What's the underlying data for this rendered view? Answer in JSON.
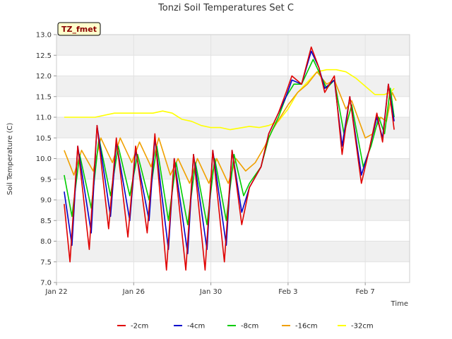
{
  "chart_data": {
    "type": "line",
    "title": "Tonzi Soil Temperatures Set C",
    "xlabel": "Time",
    "ylabel": "Soil Temperature (C)",
    "badge": "TZ_fmet",
    "ylim": [
      7.0,
      13.0
    ],
    "xlim": [
      0,
      18.3
    ],
    "y_ticks": [
      "7.0",
      "7.5",
      "8.0",
      "8.5",
      "9.0",
      "9.5",
      "10.0",
      "10.5",
      "11.0",
      "11.5",
      "12.0",
      "12.5",
      "13.0"
    ],
    "x_ticks": [
      {
        "label": "Jan 22",
        "value": 0
      },
      {
        "label": "Jan 26",
        "value": 4
      },
      {
        "label": "Jan 30",
        "value": 8
      },
      {
        "label": "Feb 3",
        "value": 12
      },
      {
        "label": "Feb 7",
        "value": 16
      }
    ],
    "background_bands": "alternating",
    "grid": true,
    "legend_position": "bottom",
    "series": [
      {
        "name": "-2cm",
        "color": "#e00000",
        "points": [
          [
            0.4,
            8.9
          ],
          [
            0.7,
            7.5
          ],
          [
            1.1,
            10.3
          ],
          [
            1.7,
            7.8
          ],
          [
            2.1,
            10.8
          ],
          [
            2.7,
            8.3
          ],
          [
            3.1,
            10.5
          ],
          [
            3.7,
            8.1
          ],
          [
            4.1,
            10.3
          ],
          [
            4.7,
            8.2
          ],
          [
            5.1,
            10.6
          ],
          [
            5.7,
            7.3
          ],
          [
            6.1,
            10.0
          ],
          [
            6.7,
            7.3
          ],
          [
            7.1,
            10.1
          ],
          [
            7.7,
            7.3
          ],
          [
            8.1,
            10.2
          ],
          [
            8.7,
            7.5
          ],
          [
            9.1,
            10.2
          ],
          [
            9.6,
            8.4
          ],
          [
            10.0,
            9.3
          ],
          [
            10.6,
            9.8
          ],
          [
            11.0,
            10.6
          ],
          [
            11.5,
            11.1
          ],
          [
            11.9,
            11.6
          ],
          [
            12.2,
            12.0
          ],
          [
            12.7,
            11.8
          ],
          [
            13.2,
            12.7
          ],
          [
            13.6,
            12.2
          ],
          [
            13.9,
            11.6
          ],
          [
            14.4,
            12.0
          ],
          [
            14.8,
            10.1
          ],
          [
            15.2,
            11.5
          ],
          [
            15.8,
            9.4
          ],
          [
            16.2,
            10.2
          ],
          [
            16.6,
            11.1
          ],
          [
            16.9,
            10.4
          ],
          [
            17.2,
            11.8
          ],
          [
            17.5,
            10.7
          ]
        ]
      },
      {
        "name": "-4cm",
        "color": "#0000cc",
        "points": [
          [
            0.4,
            9.2
          ],
          [
            0.8,
            7.9
          ],
          [
            1.1,
            10.3
          ],
          [
            1.8,
            8.2
          ],
          [
            2.1,
            10.8
          ],
          [
            2.8,
            8.6
          ],
          [
            3.1,
            10.4
          ],
          [
            3.8,
            8.5
          ],
          [
            4.1,
            10.2
          ],
          [
            4.8,
            8.5
          ],
          [
            5.1,
            10.5
          ],
          [
            5.8,
            7.8
          ],
          [
            6.1,
            10.0
          ],
          [
            6.8,
            7.7
          ],
          [
            7.1,
            10.1
          ],
          [
            7.8,
            7.8
          ],
          [
            8.1,
            10.2
          ],
          [
            8.8,
            7.9
          ],
          [
            9.1,
            10.2
          ],
          [
            9.6,
            8.7
          ],
          [
            10.0,
            9.3
          ],
          [
            10.6,
            9.8
          ],
          [
            11.0,
            10.6
          ],
          [
            11.5,
            11.1
          ],
          [
            11.9,
            11.5
          ],
          [
            12.2,
            11.9
          ],
          [
            12.7,
            11.8
          ],
          [
            13.2,
            12.6
          ],
          [
            13.6,
            12.2
          ],
          [
            13.9,
            11.7
          ],
          [
            14.4,
            11.9
          ],
          [
            14.8,
            10.3
          ],
          [
            15.2,
            11.5
          ],
          [
            15.8,
            9.6
          ],
          [
            16.2,
            10.2
          ],
          [
            16.6,
            11.0
          ],
          [
            16.9,
            10.5
          ],
          [
            17.2,
            11.8
          ],
          [
            17.5,
            10.9
          ]
        ]
      },
      {
        "name": "-8cm",
        "color": "#00cc00",
        "points": [
          [
            0.4,
            9.6
          ],
          [
            0.8,
            8.6
          ],
          [
            1.2,
            10.1
          ],
          [
            1.8,
            8.8
          ],
          [
            2.2,
            10.5
          ],
          [
            2.8,
            9.1
          ],
          [
            3.2,
            10.3
          ],
          [
            3.8,
            9.1
          ],
          [
            4.2,
            10.1
          ],
          [
            4.8,
            9.0
          ],
          [
            5.2,
            10.3
          ],
          [
            5.8,
            8.5
          ],
          [
            6.2,
            9.9
          ],
          [
            6.8,
            8.4
          ],
          [
            7.2,
            9.9
          ],
          [
            7.8,
            8.4
          ],
          [
            8.2,
            10.0
          ],
          [
            8.8,
            8.5
          ],
          [
            9.2,
            10.1
          ],
          [
            9.7,
            9.1
          ],
          [
            10.0,
            9.4
          ],
          [
            10.6,
            9.8
          ],
          [
            11.0,
            10.5
          ],
          [
            11.5,
            11.0
          ],
          [
            11.9,
            11.5
          ],
          [
            12.3,
            11.8
          ],
          [
            12.7,
            11.8
          ],
          [
            13.3,
            12.4
          ],
          [
            13.7,
            12.0
          ],
          [
            14.0,
            11.7
          ],
          [
            14.4,
            11.9
          ],
          [
            14.9,
            10.6
          ],
          [
            15.3,
            11.3
          ],
          [
            15.9,
            9.8
          ],
          [
            16.3,
            10.3
          ],
          [
            16.7,
            11.0
          ],
          [
            17.0,
            10.6
          ],
          [
            17.3,
            11.7
          ],
          [
            17.5,
            11.0
          ]
        ]
      },
      {
        "name": "-16cm",
        "color": "#f0a000",
        "points": [
          [
            0.4,
            10.2
          ],
          [
            0.9,
            9.6
          ],
          [
            1.3,
            10.2
          ],
          [
            1.9,
            9.7
          ],
          [
            2.3,
            10.5
          ],
          [
            2.9,
            9.9
          ],
          [
            3.3,
            10.5
          ],
          [
            3.9,
            9.9
          ],
          [
            4.3,
            10.4
          ],
          [
            4.9,
            9.8
          ],
          [
            5.3,
            10.5
          ],
          [
            5.9,
            9.6
          ],
          [
            6.3,
            10.0
          ],
          [
            6.9,
            9.4
          ],
          [
            7.3,
            10.0
          ],
          [
            7.9,
            9.4
          ],
          [
            8.3,
            10.0
          ],
          [
            8.9,
            9.4
          ],
          [
            9.3,
            10.0
          ],
          [
            9.8,
            9.7
          ],
          [
            10.3,
            9.9
          ],
          [
            10.8,
            10.3
          ],
          [
            11.2,
            10.7
          ],
          [
            11.6,
            11.0
          ],
          [
            12.0,
            11.3
          ],
          [
            12.5,
            11.6
          ],
          [
            13.0,
            11.8
          ],
          [
            13.5,
            12.1
          ],
          [
            14.0,
            11.8
          ],
          [
            14.4,
            11.9
          ],
          [
            15.0,
            11.2
          ],
          [
            15.3,
            11.4
          ],
          [
            16.0,
            10.5
          ],
          [
            16.4,
            10.6
          ],
          [
            16.8,
            11.0
          ],
          [
            17.1,
            10.9
          ],
          [
            17.4,
            11.6
          ],
          [
            17.6,
            11.4
          ]
        ]
      },
      {
        "name": "-32cm",
        "color": "#ffff00",
        "points": [
          [
            0.4,
            11.0
          ],
          [
            1.0,
            11.0
          ],
          [
            2.0,
            11.0
          ],
          [
            3.0,
            11.1
          ],
          [
            4.0,
            11.1
          ],
          [
            5.0,
            11.1
          ],
          [
            5.5,
            11.15
          ],
          [
            6.0,
            11.1
          ],
          [
            6.5,
            10.95
          ],
          [
            7.0,
            10.9
          ],
          [
            7.5,
            10.8
          ],
          [
            8.0,
            10.75
          ],
          [
            8.5,
            10.75
          ],
          [
            9.0,
            10.7
          ],
          [
            10.0,
            10.78
          ],
          [
            10.5,
            10.75
          ],
          [
            11.0,
            10.8
          ],
          [
            11.5,
            10.9
          ],
          [
            12.0,
            11.2
          ],
          [
            12.5,
            11.6
          ],
          [
            13.0,
            11.85
          ],
          [
            13.5,
            12.1
          ],
          [
            14.0,
            12.15
          ],
          [
            14.5,
            12.15
          ],
          [
            15.0,
            12.1
          ],
          [
            15.5,
            11.95
          ],
          [
            16.0,
            11.75
          ],
          [
            16.5,
            11.55
          ],
          [
            17.0,
            11.55
          ],
          [
            17.3,
            11.6
          ],
          [
            17.5,
            11.7
          ]
        ]
      }
    ]
  }
}
